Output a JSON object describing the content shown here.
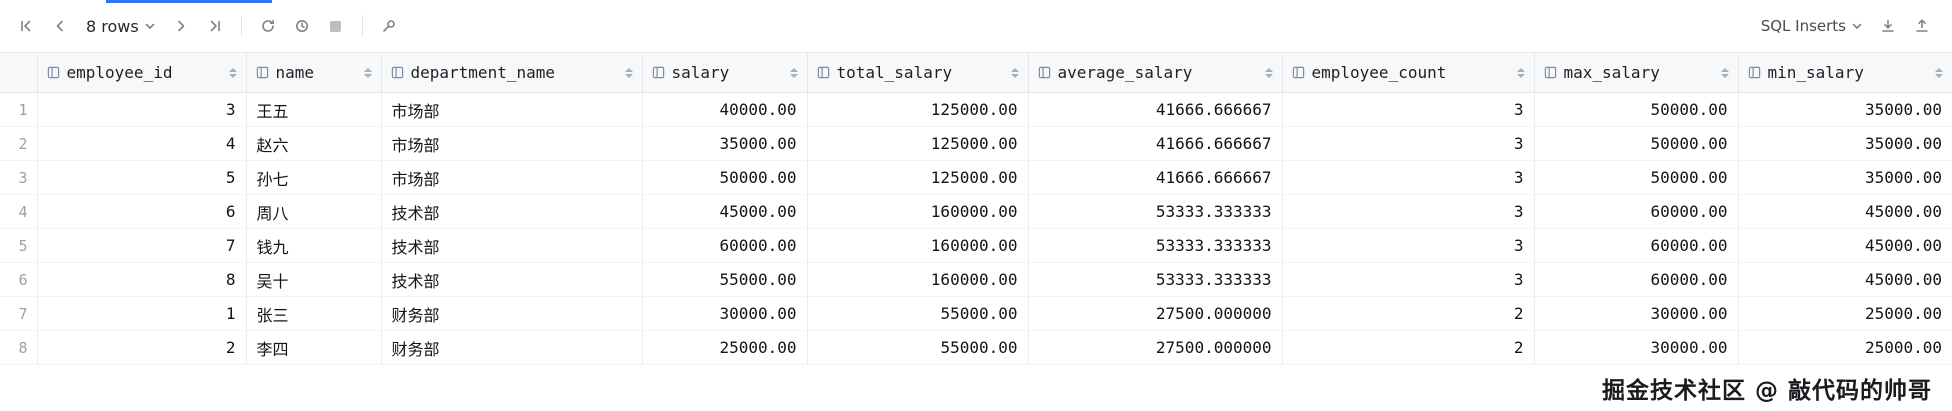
{
  "toolbar": {
    "rows_label": "8 rows",
    "export_format": "SQL Inserts"
  },
  "table": {
    "columns": [
      {
        "label": "employee_id",
        "align": "right"
      },
      {
        "label": "name",
        "align": "left"
      },
      {
        "label": "department_name",
        "align": "left"
      },
      {
        "label": "salary",
        "align": "right"
      },
      {
        "label": "total_salary",
        "align": "right"
      },
      {
        "label": "average_salary",
        "align": "right"
      },
      {
        "label": "employee_count",
        "align": "right"
      },
      {
        "label": "max_salary",
        "align": "right"
      },
      {
        "label": "min_salary",
        "align": "right"
      }
    ],
    "rows": [
      {
        "n": 1,
        "cells": [
          "3",
          "王五",
          "市场部",
          "40000.00",
          "125000.00",
          "41666.666667",
          "3",
          "50000.00",
          "35000.00"
        ]
      },
      {
        "n": 2,
        "cells": [
          "4",
          "赵六",
          "市场部",
          "35000.00",
          "125000.00",
          "41666.666667",
          "3",
          "50000.00",
          "35000.00"
        ]
      },
      {
        "n": 3,
        "cells": [
          "5",
          "孙七",
          "市场部",
          "50000.00",
          "125000.00",
          "41666.666667",
          "3",
          "50000.00",
          "35000.00"
        ]
      },
      {
        "n": 4,
        "cells": [
          "6",
          "周八",
          "技术部",
          "45000.00",
          "160000.00",
          "53333.333333",
          "3",
          "60000.00",
          "45000.00"
        ]
      },
      {
        "n": 5,
        "cells": [
          "7",
          "钱九",
          "技术部",
          "60000.00",
          "160000.00",
          "53333.333333",
          "3",
          "60000.00",
          "45000.00"
        ]
      },
      {
        "n": 6,
        "cells": [
          "8",
          "吴十",
          "技术部",
          "55000.00",
          "160000.00",
          "53333.333333",
          "3",
          "60000.00",
          "45000.00"
        ]
      },
      {
        "n": 7,
        "cells": [
          "1",
          "张三",
          "财务部",
          "30000.00",
          "55000.00",
          "27500.000000",
          "2",
          "30000.00",
          "25000.00"
        ]
      },
      {
        "n": 8,
        "cells": [
          "2",
          "李四",
          "财务部",
          "25000.00",
          "55000.00",
          "27500.000000",
          "2",
          "30000.00",
          "25000.00"
        ]
      }
    ]
  },
  "watermark": "掘金技术社区 @ 敲代码的帅哥",
  "colors": {
    "accent": "#3574f0",
    "header_bg": "#f7f8fa",
    "grid_line": "#ebecf0"
  }
}
